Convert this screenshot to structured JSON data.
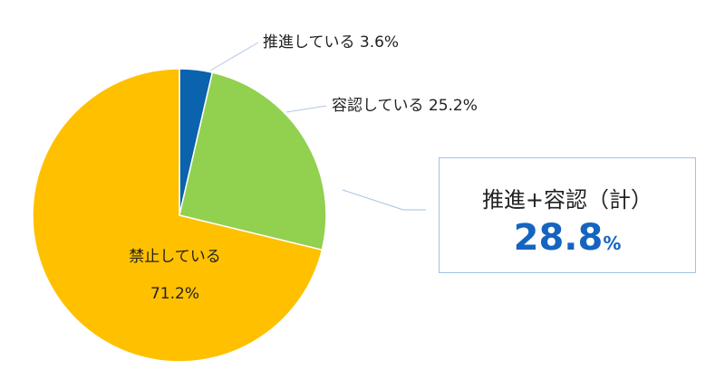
{
  "chart_data": {
    "type": "pie",
    "slices": [
      {
        "label": "推進している",
        "value": 3.6,
        "display": "推進している 3.6%",
        "color": "#0b62ad"
      },
      {
        "label": "容認している",
        "value": 25.2,
        "display": "容認している 25.2%",
        "color": "#92d050"
      },
      {
        "label": "禁止している",
        "value": 71.2,
        "display": "禁止している",
        "value_display": "71.2%",
        "color": "#ffc000"
      }
    ],
    "summary": {
      "title": "推進+容認（計）",
      "value": "28.8",
      "unit": "%"
    }
  }
}
